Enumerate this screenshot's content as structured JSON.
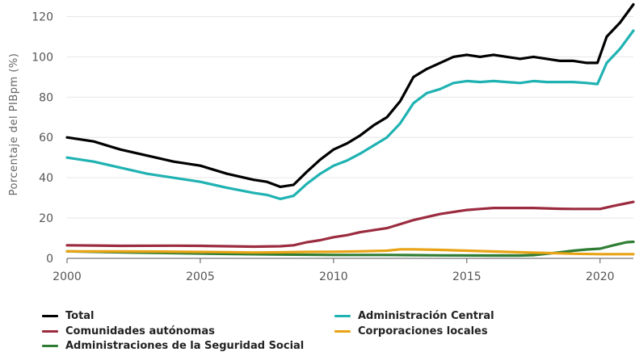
{
  "chart_data": {
    "type": "line",
    "title": "",
    "xlabel": "",
    "ylabel": "Porcentaje del PIBpm (%)",
    "xlim": [
      2000,
      2021.25
    ],
    "ylim": [
      0,
      125
    ],
    "x_ticks": [
      "2000",
      "2005",
      "2010",
      "2015",
      "2020"
    ],
    "y_ticks": [
      "0",
      "20",
      "40",
      "60",
      "80",
      "100",
      "120"
    ],
    "grid": "horizontal",
    "legend_position": "bottom",
    "series": [
      {
        "name": "Total",
        "color": "#000000",
        "points": [
          [
            2000.0,
            60
          ],
          [
            2001.0,
            58
          ],
          [
            2002.0,
            54
          ],
          [
            2003.0,
            51
          ],
          [
            2004.0,
            48
          ],
          [
            2005.0,
            46
          ],
          [
            2006.0,
            42
          ],
          [
            2007.0,
            39
          ],
          [
            2007.5,
            38
          ],
          [
            2008.0,
            35.5
          ],
          [
            2008.5,
            36.5
          ],
          [
            2009.0,
            43
          ],
          [
            2009.5,
            49
          ],
          [
            2010.0,
            54
          ],
          [
            2010.5,
            57
          ],
          [
            2011.0,
            61
          ],
          [
            2011.5,
            66
          ],
          [
            2012.0,
            70
          ],
          [
            2012.5,
            78
          ],
          [
            2013.0,
            90
          ],
          [
            2013.5,
            94
          ],
          [
            2014.0,
            97
          ],
          [
            2014.5,
            100
          ],
          [
            2015.0,
            101
          ],
          [
            2015.5,
            100
          ],
          [
            2016.0,
            101
          ],
          [
            2016.5,
            100
          ],
          [
            2017.0,
            99
          ],
          [
            2017.5,
            100
          ],
          [
            2018.0,
            99
          ],
          [
            2018.5,
            98
          ],
          [
            2019.0,
            98
          ],
          [
            2019.5,
            97
          ],
          [
            2019.9,
            97
          ],
          [
            2020.25,
            110
          ],
          [
            2020.75,
            117
          ],
          [
            2021.25,
            126
          ]
        ]
      },
      {
        "name": "Administración Central",
        "color": "#20b2b2",
        "points": [
          [
            2000.0,
            50
          ],
          [
            2001.0,
            48
          ],
          [
            2002.0,
            45
          ],
          [
            2003.0,
            42
          ],
          [
            2004.0,
            40
          ],
          [
            2005.0,
            38
          ],
          [
            2006.0,
            35
          ],
          [
            2007.0,
            32.5
          ],
          [
            2007.5,
            31.5
          ],
          [
            2008.0,
            29.5
          ],
          [
            2008.5,
            31
          ],
          [
            2009.0,
            37
          ],
          [
            2009.5,
            42
          ],
          [
            2010.0,
            46
          ],
          [
            2010.5,
            48.5
          ],
          [
            2011.0,
            52
          ],
          [
            2011.5,
            56
          ],
          [
            2012.0,
            60
          ],
          [
            2012.5,
            67
          ],
          [
            2013.0,
            77
          ],
          [
            2013.5,
            82
          ],
          [
            2014.0,
            84
          ],
          [
            2014.5,
            87
          ],
          [
            2015.0,
            88
          ],
          [
            2015.5,
            87.5
          ],
          [
            2016.0,
            88
          ],
          [
            2016.5,
            87.5
          ],
          [
            2017.0,
            87
          ],
          [
            2017.5,
            88
          ],
          [
            2018.0,
            87.5
          ],
          [
            2018.5,
            87.5
          ],
          [
            2019.0,
            87.5
          ],
          [
            2019.5,
            87
          ],
          [
            2019.9,
            86.5
          ],
          [
            2020.25,
            97
          ],
          [
            2020.75,
            104
          ],
          [
            2021.25,
            113
          ]
        ]
      },
      {
        "name": "Comunidades autónomas",
        "color": "#9b2b3f",
        "points": [
          [
            2000.0,
            6.5
          ],
          [
            2002.0,
            6.2
          ],
          [
            2004.0,
            6.3
          ],
          [
            2005.0,
            6.2
          ],
          [
            2006.0,
            6.0
          ],
          [
            2007.0,
            5.8
          ],
          [
            2008.0,
            6.0
          ],
          [
            2008.5,
            6.5
          ],
          [
            2009.0,
            8
          ],
          [
            2009.5,
            9
          ],
          [
            2010.0,
            10.5
          ],
          [
            2010.5,
            11.5
          ],
          [
            2011.0,
            13
          ],
          [
            2011.5,
            14
          ],
          [
            2012.0,
            15
          ],
          [
            2012.5,
            17
          ],
          [
            2013.0,
            19
          ],
          [
            2013.5,
            20.5
          ],
          [
            2014.0,
            22
          ],
          [
            2014.5,
            23
          ],
          [
            2015.0,
            24
          ],
          [
            2015.5,
            24.5
          ],
          [
            2016.0,
            25
          ],
          [
            2016.5,
            25
          ],
          [
            2017.0,
            25
          ],
          [
            2017.5,
            25
          ],
          [
            2018.0,
            24.8
          ],
          [
            2018.5,
            24.6
          ],
          [
            2019.0,
            24.5
          ],
          [
            2019.5,
            24.5
          ],
          [
            2020.0,
            24.5
          ],
          [
            2020.5,
            26
          ],
          [
            2021.25,
            28
          ]
        ]
      },
      {
        "name": "Corporaciones locales",
        "color": "#e8a416",
        "points": [
          [
            2000.0,
            3.5
          ],
          [
            2003.0,
            3.4
          ],
          [
            2006.0,
            3.1
          ],
          [
            2007.0,
            2.9
          ],
          [
            2008.0,
            3.0
          ],
          [
            2009.0,
            3.2
          ],
          [
            2010.0,
            3.3
          ],
          [
            2011.0,
            3.5
          ],
          [
            2012.0,
            3.8
          ],
          [
            2012.5,
            4.5
          ],
          [
            2013.0,
            4.5
          ],
          [
            2014.0,
            4.2
          ],
          [
            2015.0,
            3.8
          ],
          [
            2016.0,
            3.4
          ],
          [
            2017.0,
            3.0
          ],
          [
            2018.0,
            2.7
          ],
          [
            2019.0,
            2.3
          ],
          [
            2020.0,
            2.1
          ],
          [
            2021.25,
            2.1
          ]
        ]
      },
      {
        "name": "Administraciones de la Seguridad Social",
        "color": "#2e7d32",
        "points": [
          [
            2000.0,
            3.5
          ],
          [
            2002.0,
            3.0
          ],
          [
            2004.0,
            2.6
          ],
          [
            2006.0,
            2.2
          ],
          [
            2008.0,
            1.9
          ],
          [
            2010.0,
            1.7
          ],
          [
            2012.0,
            1.7
          ],
          [
            2014.0,
            1.5
          ],
          [
            2016.0,
            1.4
          ],
          [
            2017.0,
            1.4
          ],
          [
            2017.5,
            1.6
          ],
          [
            2018.0,
            2.3
          ],
          [
            2018.5,
            3.0
          ],
          [
            2019.0,
            3.8
          ],
          [
            2019.5,
            4.4
          ],
          [
            2020.0,
            4.8
          ],
          [
            2020.5,
            6.5
          ],
          [
            2021.0,
            8.0
          ],
          [
            2021.25,
            8.2
          ]
        ]
      }
    ]
  }
}
